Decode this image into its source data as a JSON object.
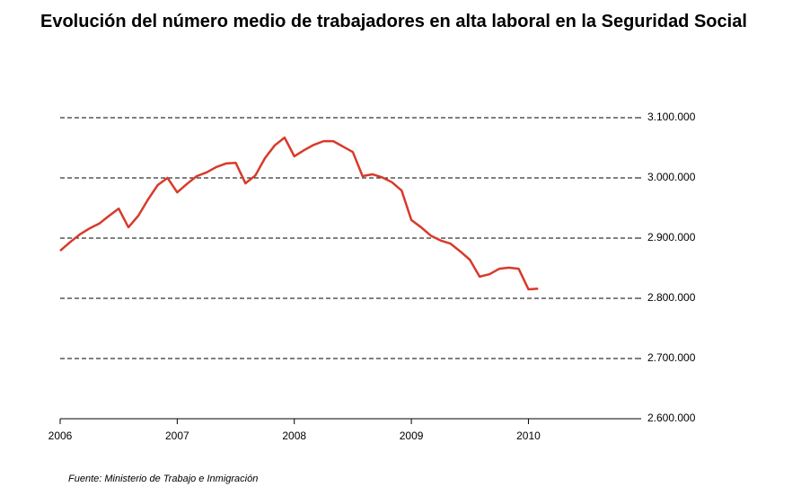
{
  "chart_data": {
    "type": "line",
    "title": "Evolución del número medio de trabajadores en alta laboral en la Seguridad Social",
    "source": "Fuente: Ministerio de Trabajo e Inmigración",
    "x": [
      2006,
      2006.083,
      2006.167,
      2006.25,
      2006.333,
      2006.417,
      2006.5,
      2006.583,
      2006.667,
      2006.75,
      2006.833,
      2006.917,
      2007,
      2007.083,
      2007.167,
      2007.25,
      2007.333,
      2007.417,
      2007.5,
      2007.583,
      2007.667,
      2007.75,
      2007.833,
      2007.917,
      2008,
      2008.083,
      2008.167,
      2008.25,
      2008.333,
      2008.417,
      2008.5,
      2008.583,
      2008.667,
      2008.75,
      2008.833,
      2008.917,
      2009,
      2009.083,
      2009.167,
      2009.25,
      2009.333,
      2009.417,
      2009.5,
      2009.583,
      2009.667,
      2009.75,
      2009.833,
      2009.917,
      2010,
      2010.083
    ],
    "series": [
      {
        "color": "#d83a2a",
        "values": [
          2879000,
          2893000,
          2906000,
          2916000,
          2924000,
          2937000,
          2949000,
          2918000,
          2937000,
          2964000,
          2988000,
          3000000,
          2976000,
          2990000,
          3003000,
          3009000,
          3018000,
          3024000,
          3025000,
          2991000,
          3004000,
          3033000,
          3054000,
          3067000,
          3036000,
          3046000,
          3055000,
          3061000,
          3061000,
          3052000,
          3043000,
          3003000,
          3006000,
          3001000,
          2993000,
          2979000,
          2930000,
          2918000,
          2904000,
          2896000,
          2891000,
          2878000,
          2864000,
          2836000,
          2840000,
          2849000,
          2851000,
          2849000,
          2815000,
          2816000
        ]
      }
    ],
    "xlim": [
      2006,
      2010.917
    ],
    "xticks": [
      2006,
      2007,
      2008,
      2009,
      2010
    ],
    "ylim": [
      2600000,
      3100000
    ],
    "yticks": [
      {
        "value": 2600000,
        "label": "2.600.000"
      },
      {
        "value": 2700000,
        "label": "2.700.000"
      },
      {
        "value": 2800000,
        "label": "2.800.000"
      },
      {
        "value": 2900000,
        "label": "2.900.000"
      },
      {
        "value": 3000000,
        "label": "3.000.000"
      },
      {
        "value": 3100000,
        "label": "3.100.000"
      }
    ],
    "grid": true
  }
}
